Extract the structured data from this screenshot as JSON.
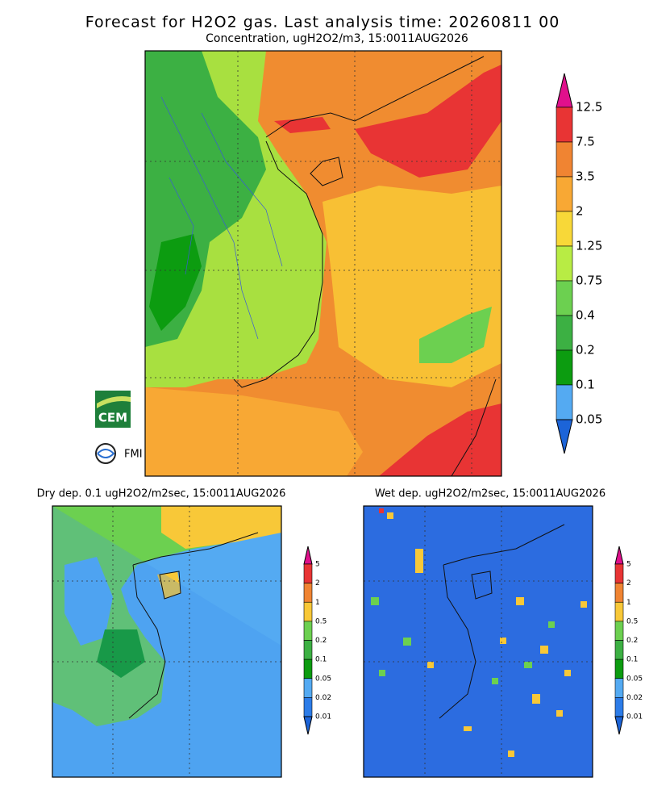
{
  "header": {
    "title": "Forecast for H2O2 gas. Last analysis time: 20260811 00",
    "subtitle": "Concentration, ugH2O2/m3, 15:0011AUG2026"
  },
  "main_legend": {
    "labels": [
      "12.5",
      "7.5",
      "3.5",
      "2",
      "1.25",
      "0.75",
      "0.4",
      "0.2",
      "0.1",
      "0.05"
    ],
    "colors": [
      "#e0108c",
      "#e83434",
      "#f08432",
      "#f8a834",
      "#f8d838",
      "#b8ec44",
      "#6cd050",
      "#3cb043",
      "#0c9c10",
      "#54aaf2",
      "#2c7ce8",
      "#1c64d8"
    ]
  },
  "panels": [
    {
      "title": "Dry dep. 0.1 ugH2O2/m2sec, 15:0011AUG2026",
      "legend": {
        "labels": [
          "5",
          "2",
          "1",
          "0.5",
          "0.2",
          "0.1",
          "0.05",
          "0.02",
          "0.01"
        ],
        "colors": [
          "#e0108c",
          "#e83434",
          "#f08432",
          "#f8c838",
          "#6cd050",
          "#3cb043",
          "#0c9c10",
          "#54aaf2",
          "#2c7ce8",
          "#1c64d8"
        ]
      }
    },
    {
      "title": "Wet dep. ugH2O2/m2sec, 15:0011AUG2026",
      "legend": {
        "labels": [
          "5",
          "2",
          "1",
          "0.5",
          "0.2",
          "0.1",
          "0.05",
          "0.02",
          "0.01"
        ],
        "colors": [
          "#e0108c",
          "#e83434",
          "#f08432",
          "#f8c838",
          "#6cd050",
          "#3cb043",
          "#0c9c10",
          "#54aaf2",
          "#2c7ce8",
          "#1c64d8"
        ]
      }
    }
  ],
  "logos": {
    "cem": "CEM",
    "fmi": "FMI"
  }
}
